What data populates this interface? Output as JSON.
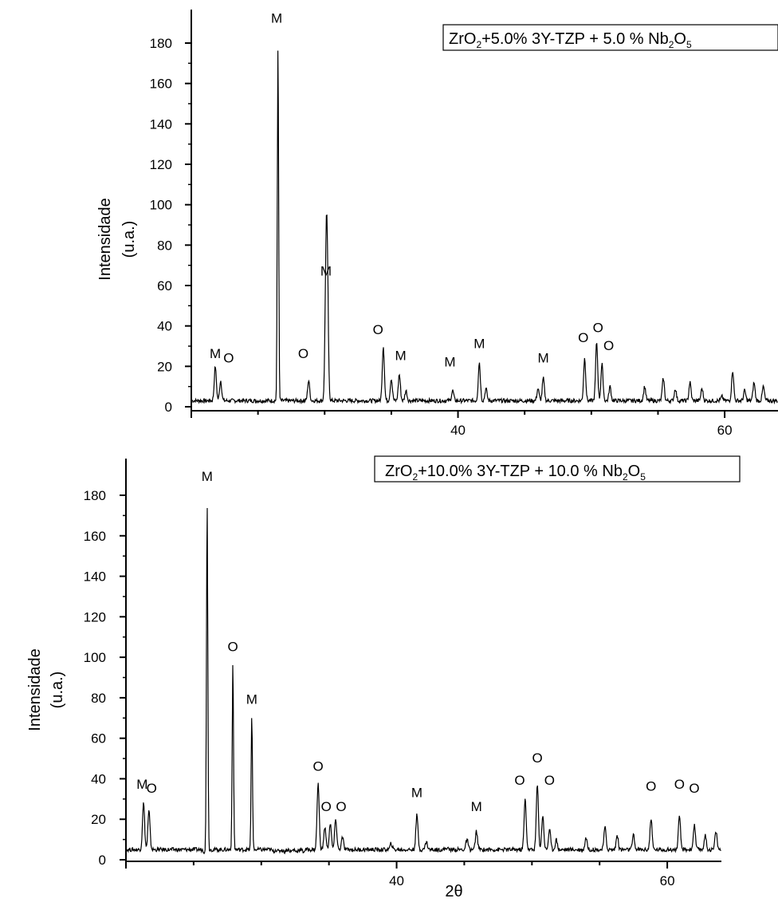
{
  "chart_data": [
    {
      "type": "line",
      "title_parts": {
        "a": "ZrO",
        "a_sub": "2",
        "b": "+5.0% 3Y-TZP + 5.0 % Nb",
        "b_sub": "2",
        "c": "O",
        "c_sub": "5"
      },
      "ylabel_line1": "Intensidade",
      "ylabel_line2": "(u.a.)",
      "xlabel": "",
      "xlim": [
        20,
        64
      ],
      "ylim": [
        -4,
        190
      ],
      "yticks": [
        0,
        20,
        40,
        60,
        80,
        100,
        120,
        140,
        160,
        180
      ],
      "xticks": [
        40,
        60
      ],
      "baseline": 3,
      "peaks": [
        {
          "x": 21.8,
          "y": 20
        },
        {
          "x": 22.2,
          "y": 13
        },
        {
          "x": 26.2,
          "y": 3
        },
        {
          "x": 26.5,
          "y": 180
        },
        {
          "x": 28.8,
          "y": 13
        },
        {
          "x": 30.1,
          "y": 60
        },
        {
          "x": 30.2,
          "y": 60
        },
        {
          "x": 31.2,
          "y": 3
        },
        {
          "x": 31.4,
          "y": 3
        },
        {
          "x": 31.9,
          "y": 3
        },
        {
          "x": 32.3,
          "y": 3
        },
        {
          "x": 34.4,
          "y": 30
        },
        {
          "x": 35.0,
          "y": 14
        },
        {
          "x": 35.6,
          "y": 16
        },
        {
          "x": 36.1,
          "y": 8
        },
        {
          "x": 39.6,
          "y": 8
        },
        {
          "x": 41.6,
          "y": 22
        },
        {
          "x": 42.1,
          "y": 9
        },
        {
          "x": 46.0,
          "y": 9
        },
        {
          "x": 46.4,
          "y": 14
        },
        {
          "x": 49.5,
          "y": 24
        },
        {
          "x": 50.4,
          "y": 32
        },
        {
          "x": 50.8,
          "y": 21
        },
        {
          "x": 51.4,
          "y": 10
        },
        {
          "x": 54.0,
          "y": 10
        },
        {
          "x": 55.4,
          "y": 14
        },
        {
          "x": 56.3,
          "y": 9
        },
        {
          "x": 57.4,
          "y": 12
        },
        {
          "x": 58.3,
          "y": 9
        },
        {
          "x": 59.8,
          "y": 5
        },
        {
          "x": 60.6,
          "y": 18
        },
        {
          "x": 61.5,
          "y": 8
        },
        {
          "x": 62.2,
          "y": 12
        },
        {
          "x": 62.9,
          "y": 10
        }
      ],
      "annotations": [
        {
          "text": "M",
          "x": 21.8,
          "y": 24
        },
        {
          "text": "O",
          "x": 22.8,
          "y": 22
        },
        {
          "text": "M",
          "x": 26.4,
          "y": 190
        },
        {
          "text": "O",
          "x": 28.4,
          "y": 24
        },
        {
          "text": "M",
          "x": 30.1,
          "y": 65
        },
        {
          "text": "O",
          "x": 34.0,
          "y": 36
        },
        {
          "text": "M",
          "x": 35.7,
          "y": 23
        },
        {
          "text": "M",
          "x": 39.4,
          "y": 20
        },
        {
          "text": "M",
          "x": 41.6,
          "y": 29
        },
        {
          "text": "M",
          "x": 46.4,
          "y": 22
        },
        {
          "text": "O",
          "x": 49.4,
          "y": 32
        },
        {
          "text": "O",
          "x": 50.5,
          "y": 37
        },
        {
          "text": "O",
          "x": 51.3,
          "y": 28
        }
      ]
    },
    {
      "type": "line",
      "title_parts": {
        "a": "ZrO",
        "a_sub": "2",
        "b": "+10.0% 3Y-TZP + 10.0 % Nb",
        "b_sub": "2",
        "c": "O",
        "c_sub": "5"
      },
      "ylabel_line1": "Intensidade",
      "ylabel_line2": "(u.a.)",
      "xlabel": "2θ",
      "xlim": [
        20,
        64
      ],
      "ylim": [
        -4,
        190
      ],
      "yticks": [
        0,
        20,
        40,
        60,
        80,
        100,
        120,
        140,
        160,
        180
      ],
      "xticks": [
        40,
        60
      ],
      "baseline": 5,
      "peaks": [
        {
          "x": 21.3,
          "y": 28
        },
        {
          "x": 21.7,
          "y": 24
        },
        {
          "x": 25.8,
          "y": 4
        },
        {
          "x": 26.0,
          "y": 178
        },
        {
          "x": 27.9,
          "y": 97
        },
        {
          "x": 29.3,
          "y": 71
        },
        {
          "x": 30.9,
          "y": 4
        },
        {
          "x": 31.3,
          "y": 4
        },
        {
          "x": 31.7,
          "y": 4
        },
        {
          "x": 32.2,
          "y": 4
        },
        {
          "x": 32.6,
          "y": 4
        },
        {
          "x": 33.1,
          "y": 4
        },
        {
          "x": 34.2,
          "y": 38
        },
        {
          "x": 34.7,
          "y": 16
        },
        {
          "x": 35.1,
          "y": 18
        },
        {
          "x": 35.5,
          "y": 20
        },
        {
          "x": 36.0,
          "y": 11
        },
        {
          "x": 39.6,
          "y": 8
        },
        {
          "x": 41.5,
          "y": 22
        },
        {
          "x": 42.2,
          "y": 9
        },
        {
          "x": 43.7,
          "y": 6
        },
        {
          "x": 45.2,
          "y": 10
        },
        {
          "x": 45.9,
          "y": 14
        },
        {
          "x": 49.5,
          "y": 30
        },
        {
          "x": 50.4,
          "y": 37
        },
        {
          "x": 50.8,
          "y": 22
        },
        {
          "x": 51.3,
          "y": 15
        },
        {
          "x": 51.8,
          "y": 10
        },
        {
          "x": 54.0,
          "y": 11
        },
        {
          "x": 55.4,
          "y": 16
        },
        {
          "x": 56.3,
          "y": 12
        },
        {
          "x": 57.5,
          "y": 12
        },
        {
          "x": 58.8,
          "y": 20
        },
        {
          "x": 60.1,
          "y": 5
        },
        {
          "x": 60.9,
          "y": 21
        },
        {
          "x": 62.0,
          "y": 17
        },
        {
          "x": 62.8,
          "y": 12
        },
        {
          "x": 63.6,
          "y": 14
        }
      ],
      "annotations": [
        {
          "text": "M",
          "x": 21.2,
          "y": 35
        },
        {
          "text": "O",
          "x": 21.9,
          "y": 33
        },
        {
          "text": "M",
          "x": 26.0,
          "y": 187
        },
        {
          "text": "O",
          "x": 27.9,
          "y": 103
        },
        {
          "text": "M",
          "x": 29.3,
          "y": 77
        },
        {
          "text": "O",
          "x": 34.2,
          "y": 44
        },
        {
          "text": "O",
          "x": 34.8,
          "y": 24
        },
        {
          "text": "O",
          "x": 35.9,
          "y": 24
        },
        {
          "text": "M",
          "x": 41.5,
          "y": 31
        },
        {
          "text": "M",
          "x": 45.9,
          "y": 24
        },
        {
          "text": "O",
          "x": 49.1,
          "y": 37
        },
        {
          "text": "O",
          "x": 50.4,
          "y": 48
        },
        {
          "text": "O",
          "x": 51.3,
          "y": 37
        },
        {
          "text": "O",
          "x": 58.8,
          "y": 34
        },
        {
          "text": "O",
          "x": 60.9,
          "y": 35
        },
        {
          "text": "O",
          "x": 62.0,
          "y": 33
        }
      ]
    }
  ]
}
